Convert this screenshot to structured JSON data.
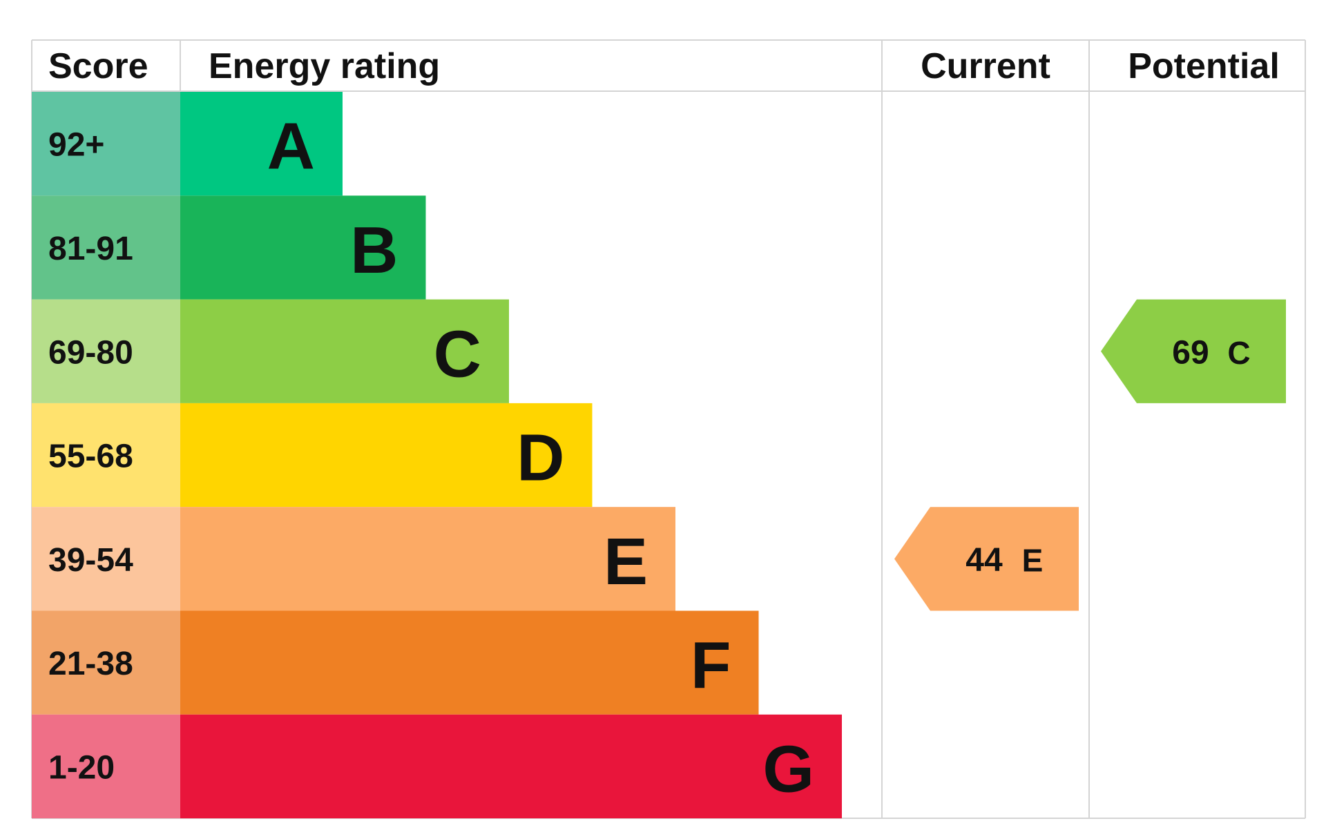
{
  "header": {
    "score": "Score",
    "rating": "Energy rating",
    "current": "Current",
    "potential": "Potential"
  },
  "bands": [
    {
      "score": "92+",
      "letter": "A",
      "color": "#00c781",
      "light": "#5fc4a2"
    },
    {
      "score": "81-91",
      "letter": "B",
      "color": "#19b459",
      "light": "#62c38a"
    },
    {
      "score": "69-80",
      "letter": "C",
      "color": "#8dce46",
      "light": "#b6de8a"
    },
    {
      "score": "55-68",
      "letter": "D",
      "color": "#ffd500",
      "light": "#ffe26e"
    },
    {
      "score": "39-54",
      "letter": "E",
      "color": "#fcaa65",
      "light": "#fcc59c"
    },
    {
      "score": "21-38",
      "letter": "F",
      "color": "#ef8023",
      "light": "#f2a468"
    },
    {
      "score": "1-20",
      "letter": "G",
      "color": "#e9153b",
      "light": "#ef6f87"
    }
  ],
  "current": {
    "score": 44,
    "rating": "E"
  },
  "potential": {
    "score": 69,
    "rating": "C"
  }
}
